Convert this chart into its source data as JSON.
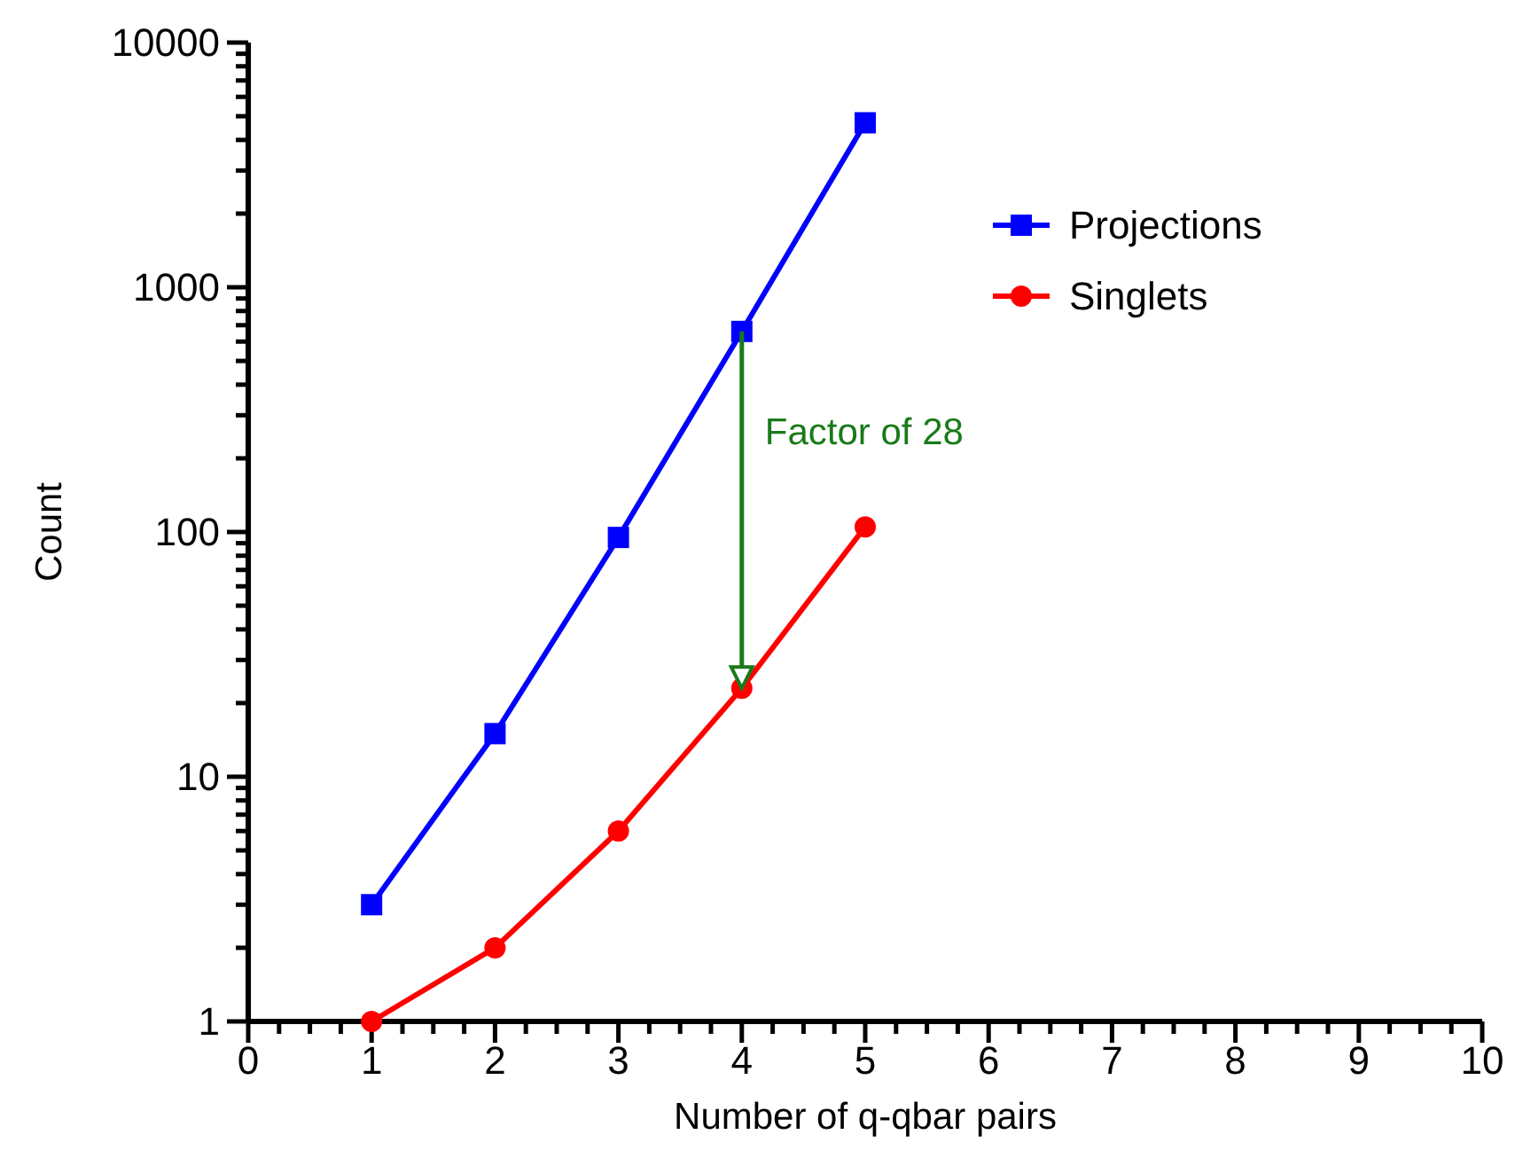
{
  "chart_data": {
    "type": "line",
    "xlabel": "Number of q-qbar pairs",
    "ylabel": "Count",
    "log": "y",
    "legend": "top right",
    "grid": false,
    "xlim": [
      0,
      10
    ],
    "xticks": [
      0,
      {
        "value": 0.25,
        "label": null
      },
      {
        "value": 0.5,
        "label": null
      },
      {
        "value": 0.75,
        "label": null
      },
      1,
      {
        "value": 1.25,
        "label": null
      },
      {
        "value": 1.5,
        "label": null
      },
      {
        "value": 1.75,
        "label": null
      },
      2,
      {
        "value": 2.25,
        "label": null
      },
      {
        "value": 2.5,
        "label": null
      },
      {
        "value": 2.75,
        "label": null
      },
      3,
      {
        "value": 3.25,
        "label": null
      },
      {
        "value": 3.5,
        "label": null
      },
      {
        "value": 3.75,
        "label": null
      },
      4,
      {
        "value": 4.25,
        "label": null
      },
      {
        "value": 4.5,
        "label": null
      },
      {
        "value": 4.75,
        "label": null
      },
      5,
      {
        "value": 5.25,
        "label": null
      },
      {
        "value": 5.5,
        "label": null
      },
      {
        "value": 5.75,
        "label": null
      },
      6,
      {
        "value": 6.25,
        "label": null
      },
      {
        "value": 6.5,
        "label": null
      },
      {
        "value": 6.75,
        "label": null
      },
      7,
      {
        "value": 7.25,
        "label": null
      },
      {
        "value": 7.5,
        "label": null
      },
      {
        "value": 7.75,
        "label": null
      },
      8,
      {
        "value": 8.25,
        "label": null
      },
      {
        "value": 8.5,
        "label": null
      },
      {
        "value": 8.75,
        "label": null
      },
      9,
      {
        "value": 9.25,
        "label": null
      },
      {
        "value": 9.5,
        "label": null
      },
      {
        "value": 9.75,
        "label": null
      },
      10
    ],
    "ylim": [
      1,
      10000
    ],
    "yticks": [
      1,
      {
        "value": 2,
        "label": null
      },
      {
        "value": 3,
        "label": null
      },
      {
        "value": 4,
        "label": null
      },
      {
        "value": 5,
        "label": null
      },
      {
        "value": 6,
        "label": null
      },
      {
        "value": 7,
        "label": null
      },
      {
        "value": 8,
        "label": null
      },
      {
        "value": 9,
        "label": null
      },
      10,
      {
        "value": 20,
        "label": null
      },
      {
        "value": 30,
        "label": null
      },
      {
        "value": 40,
        "label": null
      },
      {
        "value": 50,
        "label": null
      },
      {
        "value": 60,
        "label": null
      },
      {
        "value": 70,
        "label": null
      },
      {
        "value": 80,
        "label": null
      },
      {
        "value": 90,
        "label": null
      },
      100,
      {
        "value": 200,
        "label": null
      },
      {
        "value": 300,
        "label": null
      },
      {
        "value": 400,
        "label": null
      },
      {
        "value": 500,
        "label": null
      },
      {
        "value": 600,
        "label": null
      },
      {
        "value": 700,
        "label": null
      },
      {
        "value": 800,
        "label": null
      },
      {
        "value": 900,
        "label": null
      },
      1000,
      {
        "value": 2000,
        "label": null
      },
      {
        "value": 3000,
        "label": null
      },
      {
        "value": 4000,
        "label": null
      },
      {
        "value": 5000,
        "label": null
      },
      {
        "value": 6000,
        "label": null
      },
      {
        "value": 7000,
        "label": null
      },
      {
        "value": 8000,
        "label": null
      },
      {
        "value": 9000,
        "label": null
      },
      10000
    ],
    "x": [
      1,
      2,
      3,
      4,
      5
    ],
    "series": [
      {
        "name": "Projections",
        "color": "#0000ff",
        "marker": "square",
        "values": [
          3,
          15,
          95,
          660,
          4700
        ]
      },
      {
        "name": "Singlets",
        "color": "#ff0000",
        "marker": "circle",
        "values": [
          1,
          2,
          6,
          23,
          105
        ]
      }
    ],
    "annotations": [
      "Factor of 28"
    ]
  }
}
